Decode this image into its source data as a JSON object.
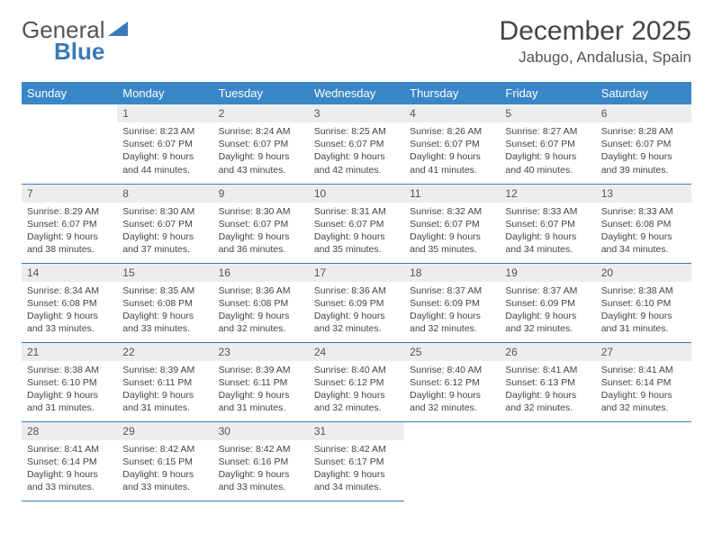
{
  "logo": {
    "part1": "General",
    "part2": "Blue"
  },
  "title": "December 2025",
  "location": "Jabugo, Andalusia, Spain",
  "colors": {
    "header_bg": "#3a87c8",
    "header_text": "#ffffff",
    "daynum_bg": "#ededed",
    "text": "#444444",
    "divider": "#3a7ab8",
    "logo_blue": "#3a7ab8",
    "page_bg": "#ffffff"
  },
  "typography": {
    "title_fontsize": 30,
    "location_fontsize": 17,
    "header_fontsize": 13,
    "cell_fontsize": 10.5,
    "logo_fontsize": 26
  },
  "weekdays": [
    "Sunday",
    "Monday",
    "Tuesday",
    "Wednesday",
    "Thursday",
    "Friday",
    "Saturday"
  ],
  "weeks": [
    [
      {
        "n": "",
        "sr": "",
        "ss": "",
        "dl": ""
      },
      {
        "n": "1",
        "sr": "Sunrise: 8:23 AM",
        "ss": "Sunset: 6:07 PM",
        "dl": "Daylight: 9 hours and 44 minutes."
      },
      {
        "n": "2",
        "sr": "Sunrise: 8:24 AM",
        "ss": "Sunset: 6:07 PM",
        "dl": "Daylight: 9 hours and 43 minutes."
      },
      {
        "n": "3",
        "sr": "Sunrise: 8:25 AM",
        "ss": "Sunset: 6:07 PM",
        "dl": "Daylight: 9 hours and 42 minutes."
      },
      {
        "n": "4",
        "sr": "Sunrise: 8:26 AM",
        "ss": "Sunset: 6:07 PM",
        "dl": "Daylight: 9 hours and 41 minutes."
      },
      {
        "n": "5",
        "sr": "Sunrise: 8:27 AM",
        "ss": "Sunset: 6:07 PM",
        "dl": "Daylight: 9 hours and 40 minutes."
      },
      {
        "n": "6",
        "sr": "Sunrise: 8:28 AM",
        "ss": "Sunset: 6:07 PM",
        "dl": "Daylight: 9 hours and 39 minutes."
      }
    ],
    [
      {
        "n": "7",
        "sr": "Sunrise: 8:29 AM",
        "ss": "Sunset: 6:07 PM",
        "dl": "Daylight: 9 hours and 38 minutes."
      },
      {
        "n": "8",
        "sr": "Sunrise: 8:30 AM",
        "ss": "Sunset: 6:07 PM",
        "dl": "Daylight: 9 hours and 37 minutes."
      },
      {
        "n": "9",
        "sr": "Sunrise: 8:30 AM",
        "ss": "Sunset: 6:07 PM",
        "dl": "Daylight: 9 hours and 36 minutes."
      },
      {
        "n": "10",
        "sr": "Sunrise: 8:31 AM",
        "ss": "Sunset: 6:07 PM",
        "dl": "Daylight: 9 hours and 35 minutes."
      },
      {
        "n": "11",
        "sr": "Sunrise: 8:32 AM",
        "ss": "Sunset: 6:07 PM",
        "dl": "Daylight: 9 hours and 35 minutes."
      },
      {
        "n": "12",
        "sr": "Sunrise: 8:33 AM",
        "ss": "Sunset: 6:07 PM",
        "dl": "Daylight: 9 hours and 34 minutes."
      },
      {
        "n": "13",
        "sr": "Sunrise: 8:33 AM",
        "ss": "Sunset: 6:08 PM",
        "dl": "Daylight: 9 hours and 34 minutes."
      }
    ],
    [
      {
        "n": "14",
        "sr": "Sunrise: 8:34 AM",
        "ss": "Sunset: 6:08 PM",
        "dl": "Daylight: 9 hours and 33 minutes."
      },
      {
        "n": "15",
        "sr": "Sunrise: 8:35 AM",
        "ss": "Sunset: 6:08 PM",
        "dl": "Daylight: 9 hours and 33 minutes."
      },
      {
        "n": "16",
        "sr": "Sunrise: 8:36 AM",
        "ss": "Sunset: 6:08 PM",
        "dl": "Daylight: 9 hours and 32 minutes."
      },
      {
        "n": "17",
        "sr": "Sunrise: 8:36 AM",
        "ss": "Sunset: 6:09 PM",
        "dl": "Daylight: 9 hours and 32 minutes."
      },
      {
        "n": "18",
        "sr": "Sunrise: 8:37 AM",
        "ss": "Sunset: 6:09 PM",
        "dl": "Daylight: 9 hours and 32 minutes."
      },
      {
        "n": "19",
        "sr": "Sunrise: 8:37 AM",
        "ss": "Sunset: 6:09 PM",
        "dl": "Daylight: 9 hours and 32 minutes."
      },
      {
        "n": "20",
        "sr": "Sunrise: 8:38 AM",
        "ss": "Sunset: 6:10 PM",
        "dl": "Daylight: 9 hours and 31 minutes."
      }
    ],
    [
      {
        "n": "21",
        "sr": "Sunrise: 8:38 AM",
        "ss": "Sunset: 6:10 PM",
        "dl": "Daylight: 9 hours and 31 minutes."
      },
      {
        "n": "22",
        "sr": "Sunrise: 8:39 AM",
        "ss": "Sunset: 6:11 PM",
        "dl": "Daylight: 9 hours and 31 minutes."
      },
      {
        "n": "23",
        "sr": "Sunrise: 8:39 AM",
        "ss": "Sunset: 6:11 PM",
        "dl": "Daylight: 9 hours and 31 minutes."
      },
      {
        "n": "24",
        "sr": "Sunrise: 8:40 AM",
        "ss": "Sunset: 6:12 PM",
        "dl": "Daylight: 9 hours and 32 minutes."
      },
      {
        "n": "25",
        "sr": "Sunrise: 8:40 AM",
        "ss": "Sunset: 6:12 PM",
        "dl": "Daylight: 9 hours and 32 minutes."
      },
      {
        "n": "26",
        "sr": "Sunrise: 8:41 AM",
        "ss": "Sunset: 6:13 PM",
        "dl": "Daylight: 9 hours and 32 minutes."
      },
      {
        "n": "27",
        "sr": "Sunrise: 8:41 AM",
        "ss": "Sunset: 6:14 PM",
        "dl": "Daylight: 9 hours and 32 minutes."
      }
    ],
    [
      {
        "n": "28",
        "sr": "Sunrise: 8:41 AM",
        "ss": "Sunset: 6:14 PM",
        "dl": "Daylight: 9 hours and 33 minutes."
      },
      {
        "n": "29",
        "sr": "Sunrise: 8:42 AM",
        "ss": "Sunset: 6:15 PM",
        "dl": "Daylight: 9 hours and 33 minutes."
      },
      {
        "n": "30",
        "sr": "Sunrise: 8:42 AM",
        "ss": "Sunset: 6:16 PM",
        "dl": "Daylight: 9 hours and 33 minutes."
      },
      {
        "n": "31",
        "sr": "Sunrise: 8:42 AM",
        "ss": "Sunset: 6:17 PM",
        "dl": "Daylight: 9 hours and 34 minutes."
      },
      {
        "n": "",
        "sr": "",
        "ss": "",
        "dl": ""
      },
      {
        "n": "",
        "sr": "",
        "ss": "",
        "dl": ""
      },
      {
        "n": "",
        "sr": "",
        "ss": "",
        "dl": ""
      }
    ]
  ]
}
